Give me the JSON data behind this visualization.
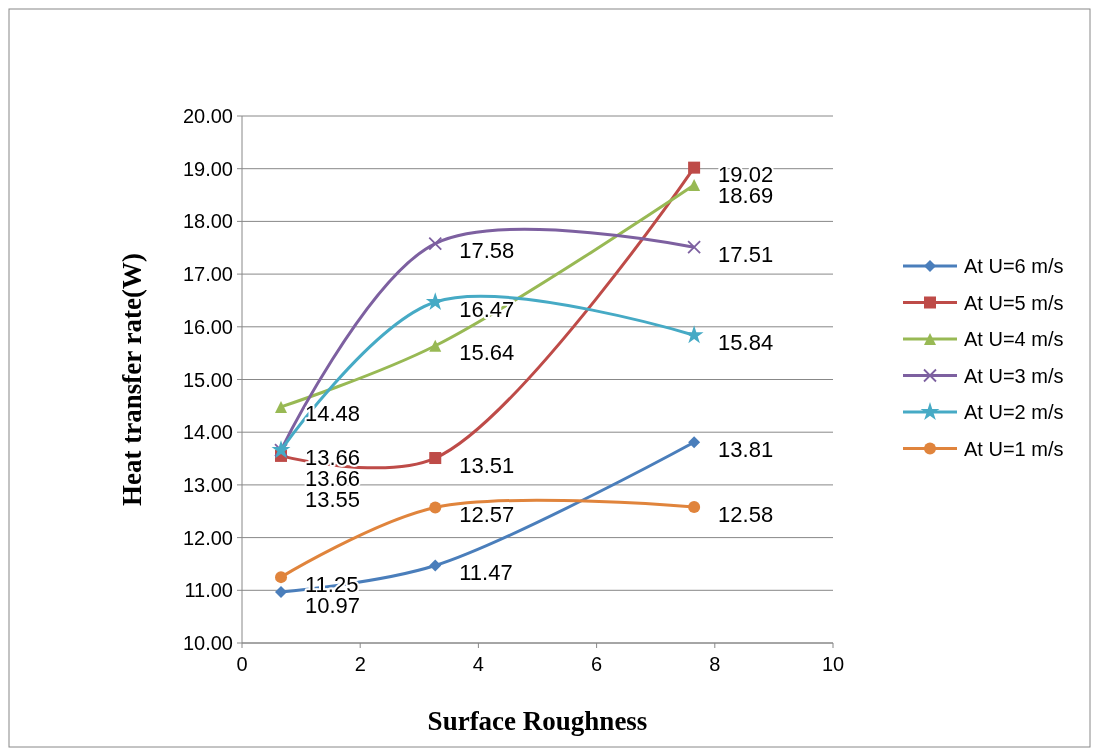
{
  "chart_data": {
    "type": "line",
    "xlabel": "Surface Roughness",
    "ylabel": "Heat transfer rate(W)",
    "xlim": [
      0,
      10
    ],
    "xticks": [
      0,
      2,
      4,
      6,
      8,
      10
    ],
    "ylim": [
      10,
      20
    ],
    "yticks": [
      {
        "value": 10,
        "label": "10.00"
      },
      {
        "value": 11,
        "label": "11.00"
      },
      {
        "value": 12,
        "label": "12.00"
      },
      {
        "value": 13,
        "label": "13.00"
      },
      {
        "value": 14,
        "label": "14.00"
      },
      {
        "value": 15,
        "label": "15.00"
      },
      {
        "value": 16,
        "label": "16.00"
      },
      {
        "value": 17,
        "label": "17.00"
      },
      {
        "value": 18,
        "label": "18.00"
      },
      {
        "value": 19,
        "label": "19.00"
      },
      {
        "value": 20,
        "label": "20.00"
      }
    ],
    "grid": "y",
    "legend": "right",
    "data_labels": true,
    "x": [
      0.66,
      3.27,
      7.65
    ],
    "series": [
      {
        "name": "At U=6 m/s",
        "color": "#4a7ebb",
        "marker": "diamond",
        "values": [
          10.97,
          11.47,
          13.81
        ]
      },
      {
        "name": "At U=5 m/s",
        "color": "#be4b48",
        "marker": "square",
        "values": [
          13.55,
          13.51,
          19.02
        ]
      },
      {
        "name": "At U=4 m/s",
        "color": "#98b954",
        "marker": "triangle",
        "values": [
          14.48,
          15.64,
          18.69
        ]
      },
      {
        "name": "At U=3 m/s",
        "color": "#7d60a0",
        "marker": "cross",
        "values": [
          13.66,
          17.58,
          17.51
        ]
      },
      {
        "name": "At U=2 m/s",
        "color": "#46aac5",
        "marker": "star",
        "values": [
          13.66,
          16.47,
          15.84
        ]
      },
      {
        "name": "At U=1 m/s",
        "color": "#e0843c",
        "marker": "circle",
        "values": [
          11.25,
          12.57,
          12.58
        ]
      }
    ]
  }
}
